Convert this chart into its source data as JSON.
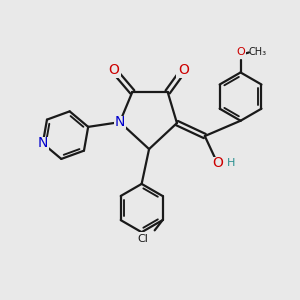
{
  "background_color": "#e9e9e9",
  "bond_color": "#1a1a1a",
  "bond_width": 1.6,
  "dbo": 0.055,
  "atom_colors": {
    "O": "#cc0000",
    "N": "#0000cc",
    "Cl": "#1a1a1a",
    "H": "#2a9090"
  },
  "fs": 10,
  "fs_small": 8,
  "fs_tiny": 7
}
